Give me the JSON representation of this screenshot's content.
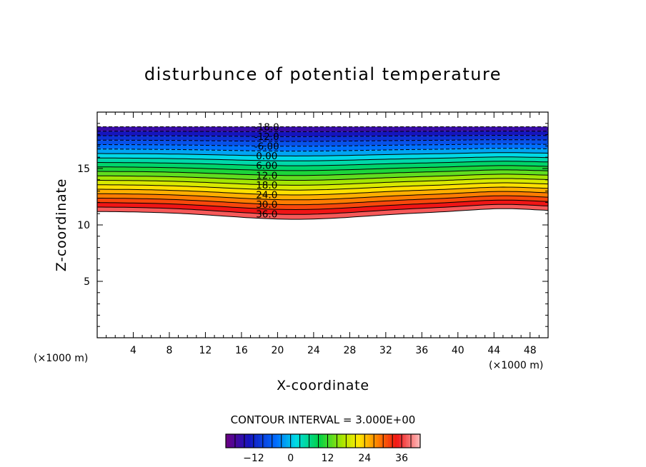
{
  "chart_data": {
    "type": "contour",
    "title": "disturbunce of potential temperature",
    "xlabel": "X-coordinate",
    "ylabel": "Z-coordinate",
    "x_unit": "(×1000 m)",
    "y_unit": "(×1000 m)",
    "xlim": [
      0,
      50
    ],
    "ylim": [
      0,
      20
    ],
    "x_ticks": [
      4,
      8,
      12,
      16,
      20,
      24,
      28,
      32,
      36,
      40,
      44,
      48
    ],
    "y_ticks": [
      5,
      10,
      15
    ],
    "contour_interval_text": "CONTOUR INTERVAL =  3.000E+00",
    "contour_levels": [
      -18,
      -15,
      -12,
      -9,
      -6,
      -3,
      0,
      3,
      6,
      9,
      12,
      15,
      18,
      21,
      24,
      27,
      30,
      33,
      36,
      39
    ],
    "contour_labels": [
      "-18.0",
      "-12.0",
      "-6.00",
      "0.00",
      "6.00",
      "12.0",
      "18.0",
      "24.0",
      "30.0",
      "36.0"
    ],
    "colorbar": {
      "min": -21,
      "max": 42,
      "tick_values": [
        -12,
        0,
        12,
        24,
        36
      ],
      "tick_labels": [
        "−12",
        "0",
        "12",
        "24",
        "36"
      ]
    }
  }
}
